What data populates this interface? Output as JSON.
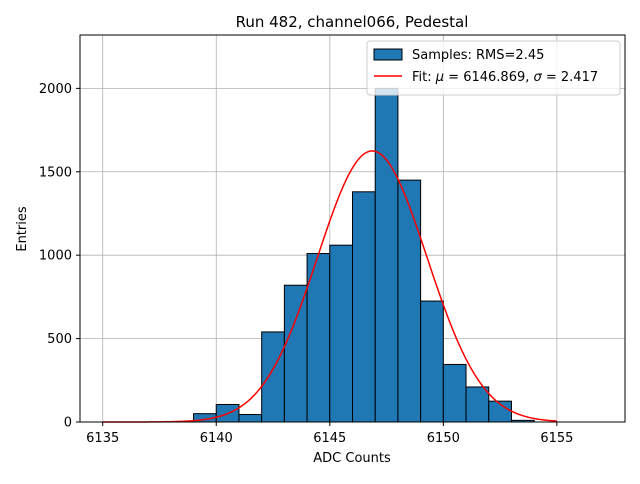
{
  "chart_data": {
    "type": "bar",
    "title": "Run 482, channel066, Pedestal",
    "xlabel": "ADC Counts",
    "ylabel": "Entries",
    "xlim": [
      6134,
      6158
    ],
    "ylim": [
      0,
      2320
    ],
    "x_ticks": [
      6135,
      6140,
      6145,
      6150,
      6155
    ],
    "x_tick_labels": [
      "6135",
      "6140",
      "6145",
      "6150",
      "6155"
    ],
    "y_ticks": [
      0,
      500,
      1000,
      1500,
      2000
    ],
    "y_tick_labels": [
      "0",
      "500",
      "1000",
      "1500",
      "2000"
    ],
    "grid": true,
    "legend_position": "top-right",
    "histogram": {
      "name": "Samples: RMS=2.45",
      "color": "#1f77b4",
      "edge_color": "#000000",
      "bin_edges": [
        6139,
        6140,
        6141,
        6142,
        6143,
        6144,
        6145,
        6146,
        6147,
        6148,
        6149,
        6150,
        6151,
        6152,
        6153,
        6154
      ],
      "counts": [
        50,
        105,
        45,
        540,
        820,
        1010,
        1060,
        1380,
        2000,
        1450,
        725,
        345,
        210,
        125,
        10
      ]
    },
    "fit": {
      "name_prefix": "Fit: ",
      "name_mu": "μ",
      "name_mid": " = 6146.869, ",
      "name_sigma": "σ",
      "name_suffix": " = 2.417",
      "color": "#ff0000",
      "mu": 6146.869,
      "sigma": 2.417,
      "amplitude": 1625,
      "x_range": [
        6135,
        6155
      ]
    }
  }
}
